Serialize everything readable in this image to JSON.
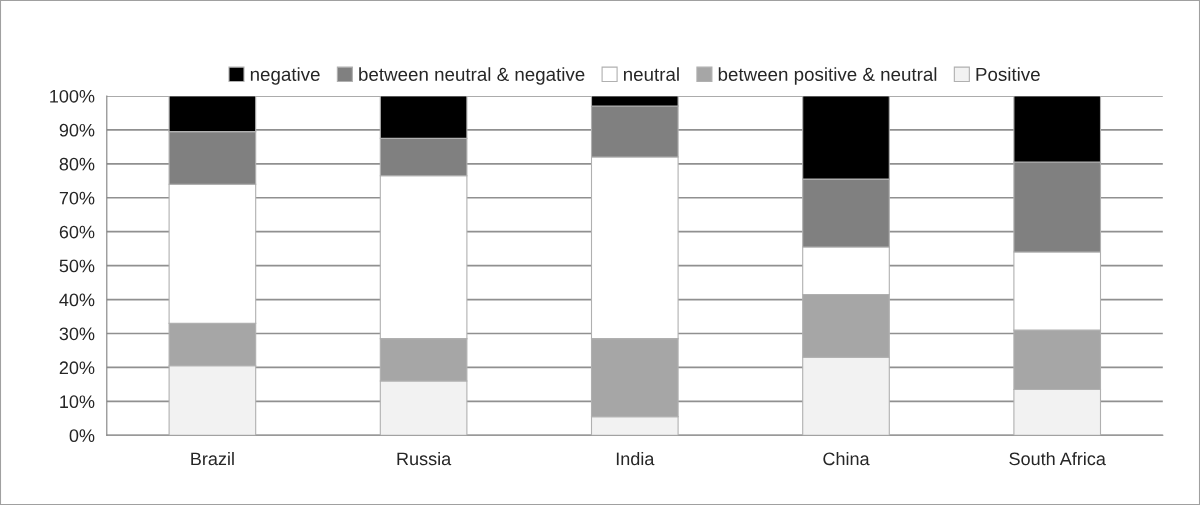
{
  "chart_data": {
    "type": "bar",
    "stacked": true,
    "categories": [
      "Brazil",
      "Russia",
      "India",
      "China",
      "South Africa"
    ],
    "series": [
      {
        "name": "Positive",
        "color": "#f2f2f2",
        "values": [
          20.5,
          16,
          5.5,
          23,
          13.5
        ]
      },
      {
        "name": "between positive & neutral",
        "color": "#a6a6a6",
        "values": [
          12.5,
          12.5,
          23,
          18.5,
          17.5
        ]
      },
      {
        "name": "neutral",
        "color": "#ffffff",
        "values": [
          41,
          48,
          53.5,
          14,
          23
        ]
      },
      {
        "name": "between neutral & negative",
        "color": "#808080",
        "values": [
          15.5,
          11,
          15,
          20,
          26.5
        ]
      },
      {
        "name": "negative",
        "color": "#000000",
        "values": [
          10.5,
          12.5,
          3,
          24.5,
          19.5
        ]
      }
    ],
    "ylim": [
      0,
      100
    ],
    "yticks": [
      {
        "value": 0,
        "label": "0%"
      },
      {
        "value": 10,
        "label": "10%"
      },
      {
        "value": 20,
        "label": "20%"
      },
      {
        "value": 30,
        "label": "30%"
      },
      {
        "value": 40,
        "label": "40%"
      },
      {
        "value": 50,
        "label": "50%"
      },
      {
        "value": 60,
        "label": "60%"
      },
      {
        "value": 70,
        "label": "70%"
      },
      {
        "value": 80,
        "label": "80%"
      },
      {
        "value": 90,
        "label": "90%"
      },
      {
        "value": 100,
        "label": "100%"
      }
    ],
    "grid": "y",
    "legend": "top"
  }
}
